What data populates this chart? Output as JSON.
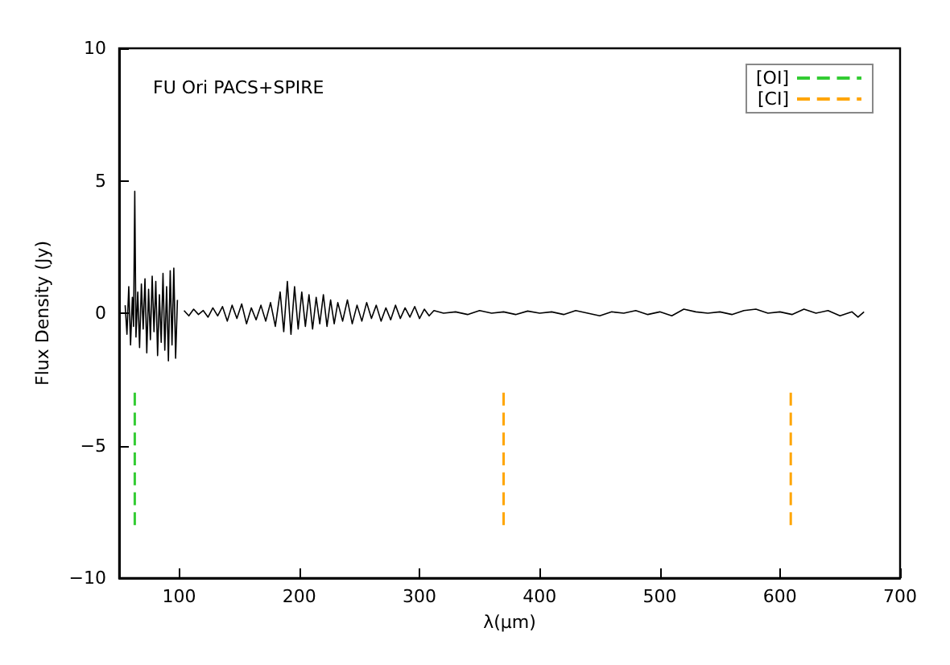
{
  "chart_data": {
    "type": "line",
    "title": "FU Ori PACS+SPIRE",
    "xlabel": "λ(μm)",
    "ylabel": "Flux Density (Jy)",
    "xlim": [
      50,
      700
    ],
    "xticks": [
      100,
      200,
      300,
      400,
      500,
      600,
      700
    ],
    "ylim": [
      -10,
      10
    ],
    "yticks": [
      -10,
      -5,
      0,
      5,
      10
    ],
    "grid": false,
    "legend": "top right",
    "marker": "none",
    "series": [
      {
        "color": "#000000",
        "line_style": "solid",
        "x": [
          55,
          56.5,
          58,
          59.5,
          61,
          62,
          63,
          64,
          65.5,
          67,
          68.5,
          70,
          71.5,
          73,
          74.5,
          76,
          77.5,
          79,
          80.5,
          82,
          83.5,
          85,
          86.5,
          88,
          89.5,
          91,
          92.5,
          94,
          95.5,
          97,
          98.5,
          101,
          104,
          108,
          112,
          116,
          120,
          124,
          128,
          132,
          136,
          140,
          144,
          148,
          152,
          156,
          160,
          164,
          168,
          172,
          176,
          180,
          184,
          187,
          190,
          193,
          196,
          199,
          202,
          205,
          208,
          211,
          214,
          217,
          220,
          223,
          226,
          229,
          232,
          236,
          240,
          244,
          248,
          252,
          256,
          260,
          264,
          268,
          272,
          276,
          280,
          284,
          288,
          292,
          296,
          300,
          304,
          308,
          312,
          320,
          330,
          340,
          350,
          360,
          370,
          380,
          390,
          400,
          410,
          420,
          430,
          440,
          450,
          460,
          470,
          480,
          490,
          500,
          510,
          520,
          530,
          540,
          550,
          560,
          570,
          580,
          590,
          600,
          610,
          620,
          630,
          640,
          650,
          660,
          665,
          670
        ],
        "values": [
          0.3,
          -0.8,
          1.0,
          -1.2,
          0.6,
          -0.5,
          4.6,
          -0.9,
          0.8,
          -1.3,
          1.1,
          -0.6,
          1.3,
          -1.5,
          0.9,
          -1.0,
          1.4,
          -0.7,
          1.2,
          -1.6,
          0.7,
          -1.1,
          1.5,
          -1.4,
          1.0,
          -1.8,
          1.6,
          -1.2,
          1.7,
          -1.7,
          0.5,
          null,
          0.1,
          -0.1,
          0.15,
          -0.05,
          0.1,
          -0.15,
          0.2,
          -0.1,
          0.25,
          -0.3,
          0.3,
          -0.2,
          0.35,
          -0.4,
          0.2,
          -0.25,
          0.3,
          -0.3,
          0.4,
          -0.5,
          0.8,
          -0.7,
          1.2,
          -0.8,
          1.0,
          -0.6,
          0.8,
          -0.5,
          0.7,
          -0.6,
          0.6,
          -0.4,
          0.7,
          -0.5,
          0.5,
          -0.4,
          0.4,
          -0.3,
          0.5,
          -0.4,
          0.3,
          -0.3,
          0.4,
          -0.2,
          0.3,
          -0.3,
          0.2,
          -0.25,
          0.3,
          -0.2,
          0.2,
          -0.15,
          0.25,
          -0.2,
          0.15,
          -0.1,
          0.1,
          0,
          0.05,
          -0.05,
          0.1,
          0,
          0.05,
          -0.05,
          0.08,
          0,
          0.05,
          -0.05,
          0.1,
          0,
          -0.1,
          0.05,
          0,
          0.1,
          -0.05,
          0.05,
          -0.1,
          0.15,
          0.05,
          0,
          0.05,
          -0.05,
          0.1,
          0.15,
          0,
          0.05,
          -0.05,
          0.15,
          0,
          0.1,
          -0.1,
          0.05,
          -0.15,
          0.05
        ]
      },
      {
        "name": "[OI]",
        "color": "#33cc33",
        "line_style": "dashed",
        "x": [
          63,
          63
        ],
        "values": [
          -3,
          -8
        ]
      },
      {
        "name": "[CI]",
        "color": "#ffa500",
        "line_style": "dashed",
        "x": [
          370,
          370,
          490,
          609,
          609
        ],
        "values": [
          -3,
          -8,
          null,
          -3,
          -8
        ]
      }
    ]
  }
}
